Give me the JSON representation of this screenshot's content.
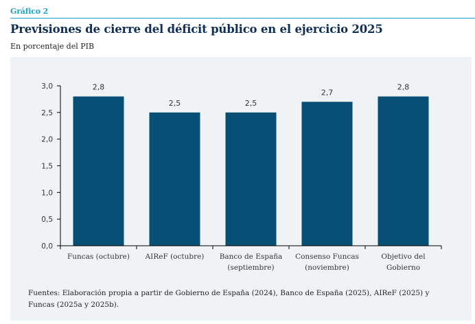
{
  "header": {
    "label": "Gráfico 2",
    "title": "Previsiones de cierre del déficit público en el ejercicio 2025",
    "subtitle": "En porcentaje del PIB"
  },
  "source": "Fuentes: Elaboración propia a partir de Gobierno de España (2024), Banco de España (2025), AIReF (2025) y Funcas (2025a y 2025b).",
  "colors": {
    "bar": "#074f74",
    "accent": "#1aa3cf",
    "title": "#0f2f57",
    "panel": "#f0f3f5"
  },
  "chart_data": {
    "type": "bar",
    "title": "Previsiones de cierre del déficit público en el ejercicio 2025",
    "subtitle": "En porcentaje del PIB",
    "xlabel": "",
    "ylabel": "",
    "categories": [
      [
        "Funcas (octubre)"
      ],
      [
        "AIReF (octubre)"
      ],
      [
        "Banco de España",
        "(septiembre)"
      ],
      [
        "Consenso Funcas",
        "(noviembre)"
      ],
      [
        "Objetivo del",
        "Gobierno"
      ]
    ],
    "values": [
      2.8,
      2.5,
      2.5,
      2.7,
      2.8
    ],
    "value_labels": [
      "2,8",
      "2,5",
      "2,5",
      "2,7",
      "2,8"
    ],
    "ylim": [
      0,
      3.0
    ],
    "yticks": [
      0,
      0.5,
      1.0,
      1.5,
      2.0,
      2.5,
      3.0
    ],
    "ytick_labels": [
      "0,0",
      "0,5",
      "1,0",
      "1,5",
      "2,0",
      "2,5",
      "3,0"
    ],
    "grid": false,
    "legend": "none"
  }
}
